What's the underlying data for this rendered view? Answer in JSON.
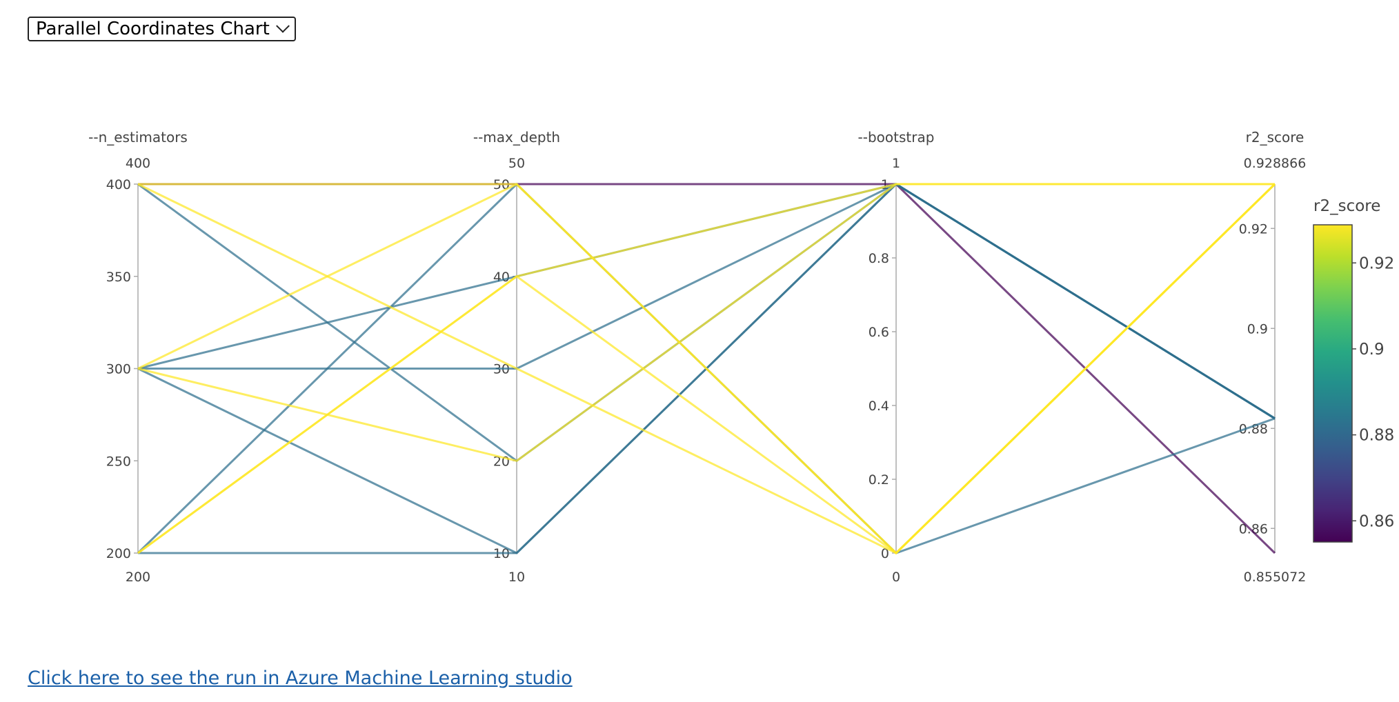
{
  "view_selector": {
    "selected": "Parallel Coordinates Chart"
  },
  "link": {
    "label": "Click here to see the run in Azure Machine Learning studio"
  },
  "chart_data": {
    "type": "parallel_coordinates",
    "dimensions": [
      {
        "key": "n_estimators",
        "label": "--n_estimators",
        "range": [
          200,
          400
        ],
        "range_labels": [
          "200",
          "400"
        ],
        "ticks": [
          200,
          250,
          300,
          350,
          400
        ],
        "tick_labels": [
          "200",
          "250",
          "300",
          "350",
          "400"
        ]
      },
      {
        "key": "max_depth",
        "label": "--max_depth",
        "range": [
          10,
          50
        ],
        "range_labels": [
          "10",
          "50"
        ],
        "ticks": [
          10,
          20,
          30,
          40,
          50
        ],
        "tick_labels": [
          "10",
          "20",
          "30",
          "40",
          "50"
        ]
      },
      {
        "key": "bootstrap",
        "label": "--bootstrap",
        "range": [
          0,
          1
        ],
        "range_labels": [
          "0",
          "1"
        ],
        "ticks": [
          0,
          0.2,
          0.4,
          0.6,
          0.8,
          1
        ],
        "tick_labels": [
          "0",
          "0.2",
          "0.4",
          "0.6",
          "0.8",
          "1"
        ]
      },
      {
        "key": "r2_score",
        "label": "r2_score",
        "range": [
          0.855072,
          0.928866
        ],
        "range_labels": [
          "0.855072",
          "0.928866"
        ],
        "ticks": [
          0.86,
          0.88,
          0.9,
          0.92
        ],
        "tick_labels": [
          "0.86",
          "0.88",
          "0.9",
          "0.92"
        ]
      }
    ],
    "records": [
      {
        "n_estimators": 400,
        "max_depth": 50,
        "bootstrap": 1,
        "r2_score": 0.855072
      },
      {
        "n_estimators": 400,
        "max_depth": 20,
        "bootstrap": 1,
        "r2_score": 0.882
      },
      {
        "n_estimators": 400,
        "max_depth": 30,
        "bootstrap": 0,
        "r2_score": 0.928866
      },
      {
        "n_estimators": 300,
        "max_depth": 50,
        "bootstrap": 0,
        "r2_score": 0.928866
      },
      {
        "n_estimators": 300,
        "max_depth": 40,
        "bootstrap": 1,
        "r2_score": 0.882
      },
      {
        "n_estimators": 300,
        "max_depth": 20,
        "bootstrap": 1,
        "r2_score": 0.928866
      },
      {
        "n_estimators": 300,
        "max_depth": 10,
        "bootstrap": 1,
        "r2_score": 0.882
      },
      {
        "n_estimators": 200,
        "max_depth": 50,
        "bootstrap": 0,
        "r2_score": 0.882
      },
      {
        "n_estimators": 200,
        "max_depth": 40,
        "bootstrap": 1,
        "r2_score": 0.928866
      },
      {
        "n_estimators": 200,
        "max_depth": 10,
        "bootstrap": 1,
        "r2_score": 0.882
      },
      {
        "n_estimators": 400,
        "max_depth": 50,
        "bootstrap": 0,
        "r2_score": 0.928866
      },
      {
        "n_estimators": 200,
        "max_depth": 40,
        "bootstrap": 0,
        "r2_score": 0.928866
      },
      {
        "n_estimators": 300,
        "max_depth": 30,
        "bootstrap": 1,
        "r2_score": 0.882
      }
    ],
    "color_dimension": "r2_score",
    "colorscale": "viridis",
    "colorbar": {
      "title": "r2_score",
      "ticks": [
        0.86,
        0.88,
        0.9,
        0.92
      ],
      "tick_labels": [
        "0.86",
        "0.88",
        "0.9",
        "0.92"
      ]
    },
    "colors": {
      "axis": "#aaaaaa",
      "text": "#444444"
    }
  }
}
